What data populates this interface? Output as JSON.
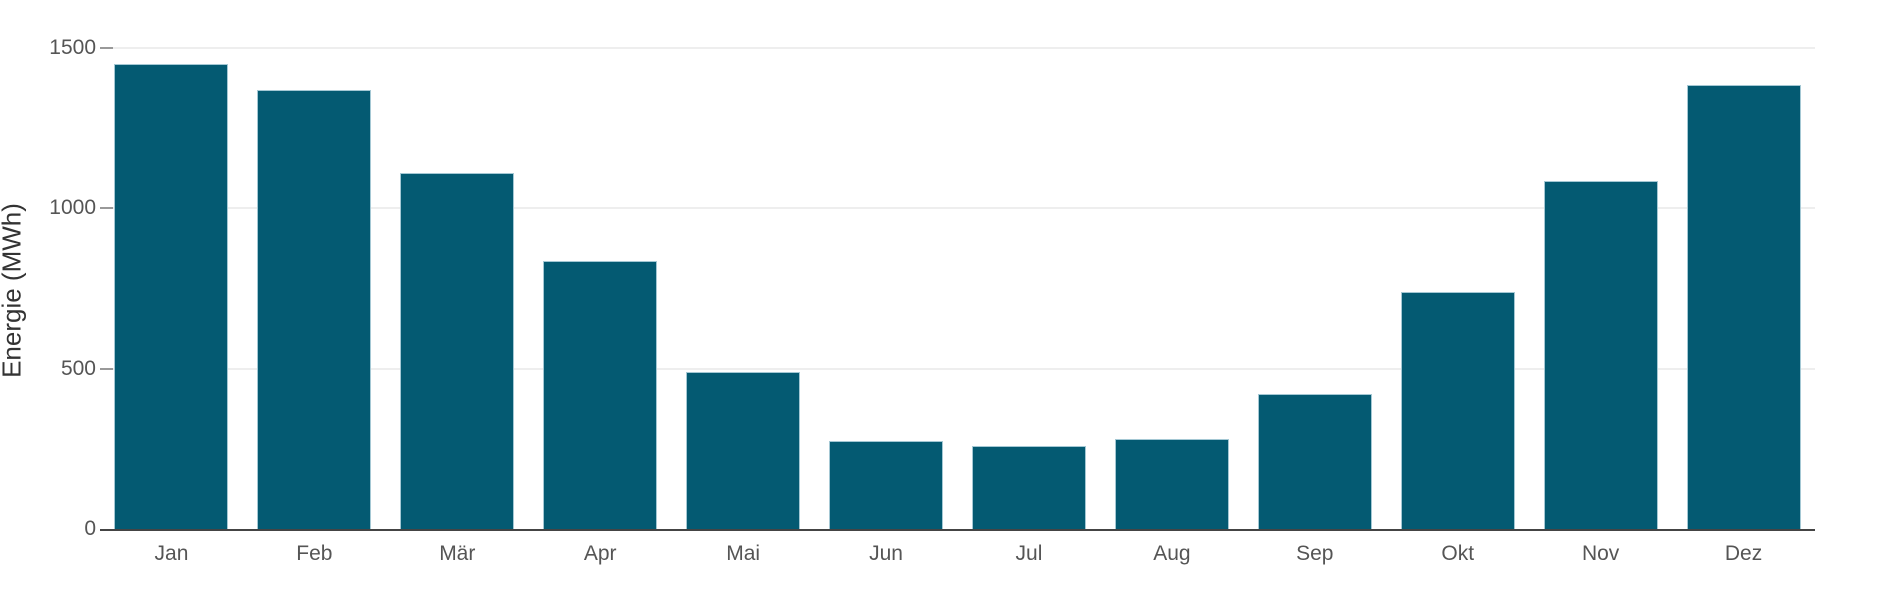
{
  "chart_data": {
    "type": "bar",
    "title": "",
    "xlabel": "",
    "ylabel": "Energie (MWh)",
    "categories": [
      "Jan",
      "Feb",
      "Mär",
      "Apr",
      "Mai",
      "Jun",
      "Jul",
      "Aug",
      "Sep",
      "Okt",
      "Nov",
      "Dez"
    ],
    "values": [
      1450,
      1370,
      1110,
      835,
      490,
      275,
      260,
      280,
      420,
      740,
      1085,
      1385
    ],
    "ylim": [
      0,
      1500
    ],
    "yticks": [
      0,
      500,
      1000,
      1500
    ],
    "grid": true,
    "legend": false,
    "bar_color": "#045a72",
    "bar_edge_color": "#a4c8d4",
    "gridline_color": "#eeeeee",
    "axis_line_color": "#444444",
    "tick_mark_color": "#999999",
    "tick_label_color": "#555555",
    "axis_title_color": "#333333",
    "background_color": "#ffffff"
  }
}
